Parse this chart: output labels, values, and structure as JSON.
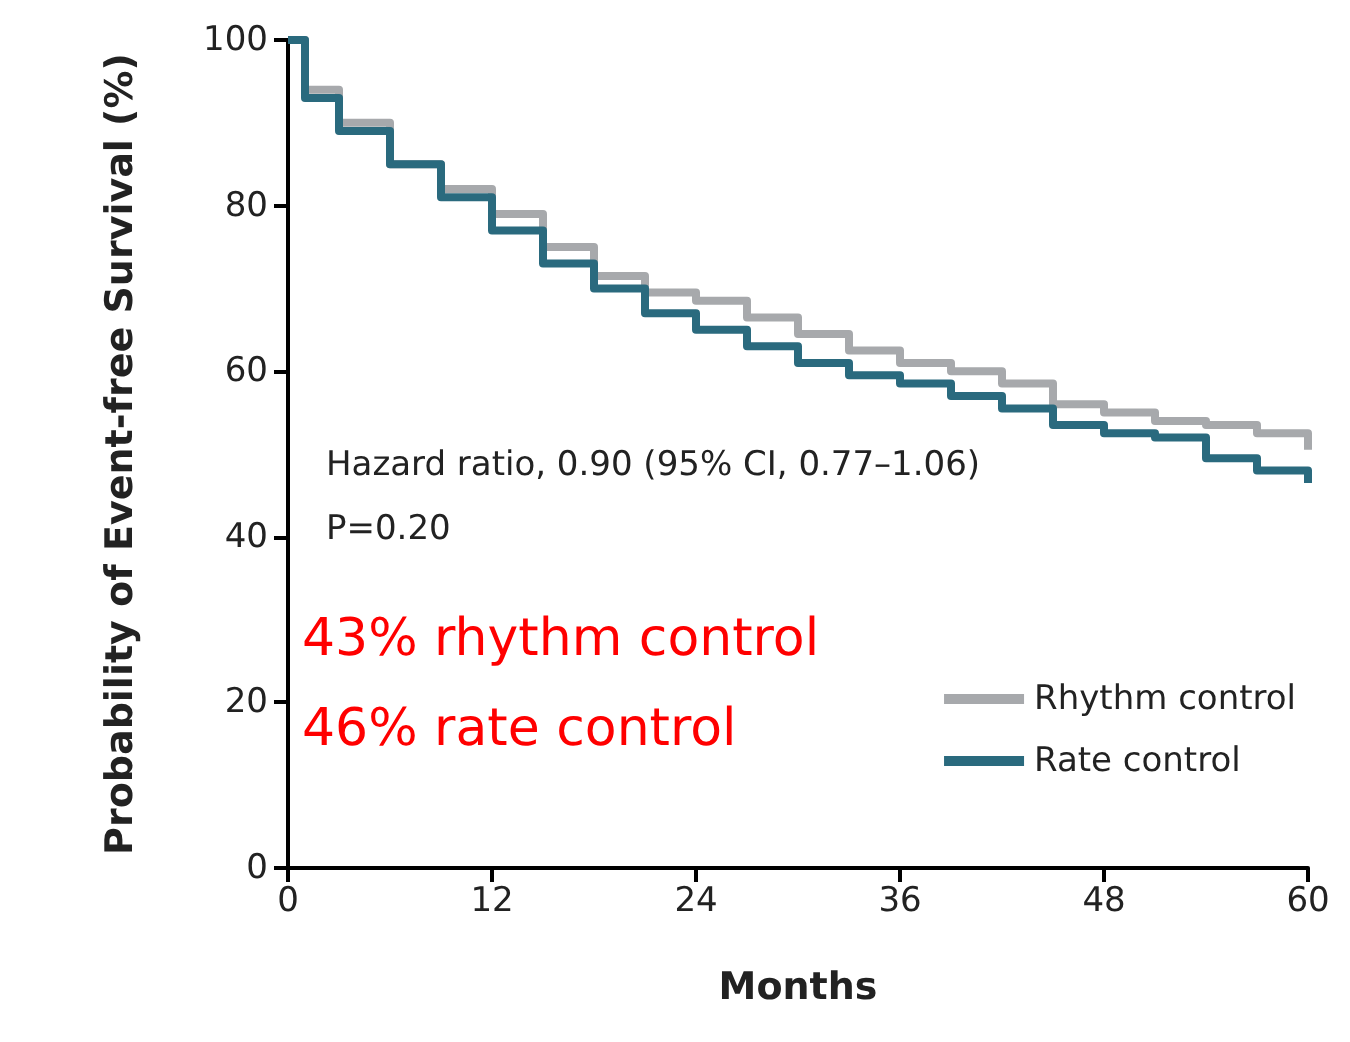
{
  "chart_data": {
    "type": "step",
    "xlabel": "Months",
    "ylabel": "Probability of Event-free Survival (%)",
    "x": [
      0,
      1,
      3,
      6,
      9,
      12,
      15,
      18,
      21,
      24,
      27,
      30,
      33,
      36,
      39,
      42,
      45,
      48,
      51,
      54,
      57,
      60
    ],
    "series": [
      {
        "name": "Rhythm control",
        "color": "#a7a9ac",
        "values": [
          100,
          94,
          90,
          85,
          82,
          79,
          75,
          71.5,
          69.5,
          68.5,
          66.5,
          64.5,
          62.5,
          61,
          60,
          58.5,
          56,
          55,
          54,
          53.5,
          52.5,
          50.5
        ]
      },
      {
        "name": "Rate control",
        "color": "#2a6a7e",
        "values": [
          100,
          93,
          89,
          85,
          81,
          77,
          73,
          70,
          67,
          65,
          63,
          61,
          59.5,
          58.5,
          57,
          55.5,
          53.5,
          52.5,
          52,
          49.5,
          48,
          46.5
        ]
      }
    ],
    "xlim": [
      0,
      60
    ],
    "xticks": [
      0,
      12,
      24,
      36,
      48,
      60
    ],
    "ylim": [
      0,
      100
    ],
    "yticks": [
      0,
      20,
      40,
      60,
      80,
      100
    ],
    "grid": false,
    "legend": "bottom right",
    "marker": "none",
    "line_style": "solid",
    "annotations": [
      "Hazard ratio, 0.90 (95% CI, 0.77–1.06)",
      "P=0.20",
      "43% rhythm control",
      "46% rate control"
    ]
  }
}
